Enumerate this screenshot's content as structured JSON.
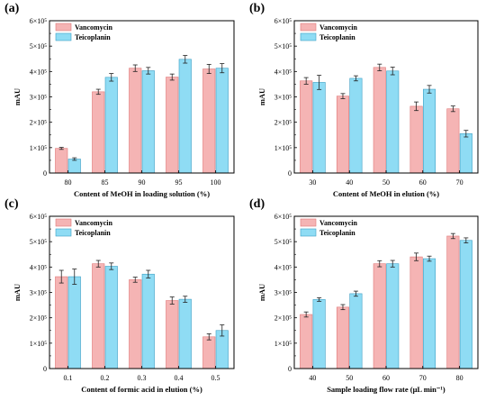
{
  "colors": {
    "vancomycin": "#f5b4b4",
    "teicoplanin": "#8fdcf4"
  },
  "chart_data": [
    {
      "type": "bar",
      "panel_label": "(a)",
      "categories": [
        "80",
        "85",
        "90",
        "95",
        "100"
      ],
      "xlabel": "Content of MeOH in loading solution (%)",
      "ylabel": "mAU",
      "ylim": [
        0,
        600000
      ],
      "ytick_labels": [
        "0",
        "1×10⁵",
        "2×10⁵",
        "3×10⁵",
        "4×10⁵",
        "5×10⁵",
        "6×10⁵"
      ],
      "legend_position": "top-left",
      "series": [
        {
          "name": "Vancomycin",
          "values": [
            97000,
            320000,
            413000,
            378000,
            410000
          ],
          "errors": [
            4000,
            10000,
            13000,
            12000,
            18000
          ]
        },
        {
          "name": "Teicoplanin",
          "values": [
            55000,
            377000,
            403000,
            448000,
            413000
          ],
          "errors": [
            5000,
            15000,
            13000,
            15000,
            18000
          ]
        }
      ]
    },
    {
      "type": "bar",
      "panel_label": "(b)",
      "categories": [
        "30",
        "40",
        "50",
        "60",
        "70"
      ],
      "xlabel": "Content of MeOH in elution (%)",
      "ylabel": "mAU",
      "ylim": [
        0,
        600000
      ],
      "ytick_labels": [
        "0",
        "1×10⁵",
        "2×10⁵",
        "3×10⁵",
        "4×10⁵",
        "5×10⁵",
        "6×10⁵"
      ],
      "legend_position": "top-left",
      "series": [
        {
          "name": "Vancomycin",
          "values": [
            363000,
            303000,
            416000,
            263000,
            253000
          ],
          "errors": [
            13000,
            10000,
            13000,
            17000,
            11000
          ]
        },
        {
          "name": "Teicoplanin",
          "values": [
            357000,
            373000,
            402000,
            330000,
            155000
          ],
          "errors": [
            28000,
            10000,
            15000,
            15000,
            13000
          ]
        }
      ]
    },
    {
      "type": "bar",
      "panel_label": "(c)",
      "categories": [
        "0.1",
        "0.2",
        "0.3",
        "0.4",
        "0.5"
      ],
      "xlabel": "Content of formic acid in elution (%)",
      "ylabel": "mAU",
      "ylim": [
        0,
        600000
      ],
      "ytick_labels": [
        "0",
        "1×10⁵",
        "2×10⁵",
        "3×10⁵",
        "4×10⁵",
        "5×10⁵",
        "6×10⁵"
      ],
      "legend_position": "top-left",
      "series": [
        {
          "name": "Vancomycin",
          "values": [
            362000,
            413000,
            350000,
            268000,
            125000
          ],
          "errors": [
            25000,
            13000,
            10000,
            14000,
            12000
          ]
        },
        {
          "name": "Teicoplanin",
          "values": [
            362000,
            403000,
            372000,
            273000,
            150000
          ],
          "errors": [
            30000,
            13000,
            15000,
            12000,
            22000
          ]
        }
      ]
    },
    {
      "type": "bar",
      "panel_label": "(d)",
      "categories": [
        "40",
        "50",
        "60",
        "70",
        "80"
      ],
      "xlabel": "Sample loading flow rate (μL min⁻¹)",
      "ylabel": "mAU",
      "ylim": [
        0,
        600000
      ],
      "ytick_labels": [
        "0",
        "1×10⁵",
        "2×10⁵",
        "3×10⁵",
        "4×10⁵",
        "5×10⁵",
        "6×10⁵"
      ],
      "legend_position": "top-left",
      "series": [
        {
          "name": "Vancomycin",
          "values": [
            213000,
            242000,
            413000,
            440000,
            522000
          ],
          "errors": [
            10000,
            10000,
            12000,
            15000,
            10000
          ]
        },
        {
          "name": "Teicoplanin",
          "values": [
            272000,
            295000,
            413000,
            433000,
            505000
          ],
          "errors": [
            7000,
            10000,
            13000,
            10000,
            10000
          ]
        }
      ]
    }
  ]
}
